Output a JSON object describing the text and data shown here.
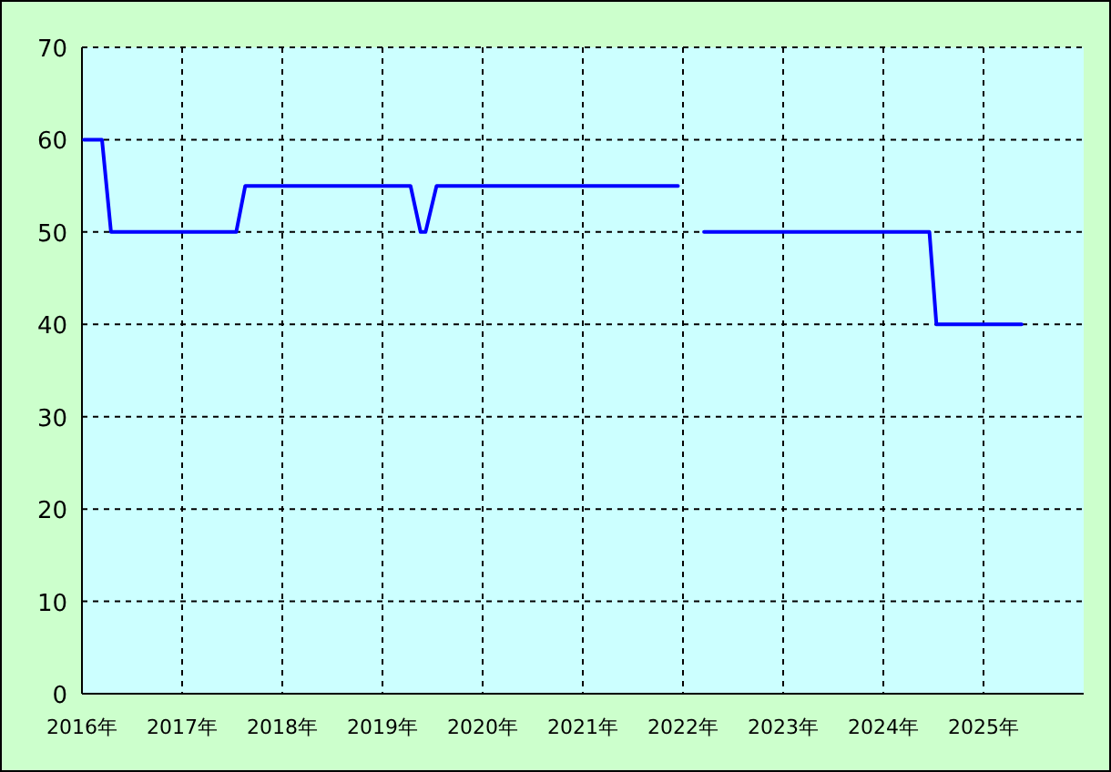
{
  "chart_data": {
    "type": "line",
    "series": [
      {
        "color": "#0000ff",
        "x": [
          2016.02,
          2016.2,
          2016.29,
          2017.54,
          2017.63,
          2019.28,
          2019.38,
          2019.43,
          2019.54,
          2021.95
        ],
        "values": [
          60,
          60,
          50,
          50,
          55,
          55,
          50,
          50,
          55,
          55
        ]
      },
      {
        "color": "#0000ff",
        "x": [
          2022.21,
          2024.46,
          2024.53,
          2025.38
        ],
        "values": [
          50,
          50,
          40,
          40
        ]
      }
    ],
    "xlim": [
      2016,
      2026
    ],
    "ylim": [
      0,
      70
    ],
    "xticks": [
      {
        "value": 2016,
        "label": "2016年"
      },
      {
        "value": 2017,
        "label": "2017年"
      },
      {
        "value": 2018,
        "label": "2018年"
      },
      {
        "value": 2019,
        "label": "2019年"
      },
      {
        "value": 2020,
        "label": "2020年"
      },
      {
        "value": 2021,
        "label": "2021年"
      },
      {
        "value": 2022,
        "label": "2022年"
      },
      {
        "value": 2023,
        "label": "2023年"
      },
      {
        "value": 2024,
        "label": "2024年"
      },
      {
        "value": 2025,
        "label": "2025年"
      }
    ],
    "yticks": [
      0,
      10,
      20,
      30,
      40,
      50,
      60,
      70
    ],
    "grid": true,
    "marker": "none",
    "line_style": "solid"
  }
}
